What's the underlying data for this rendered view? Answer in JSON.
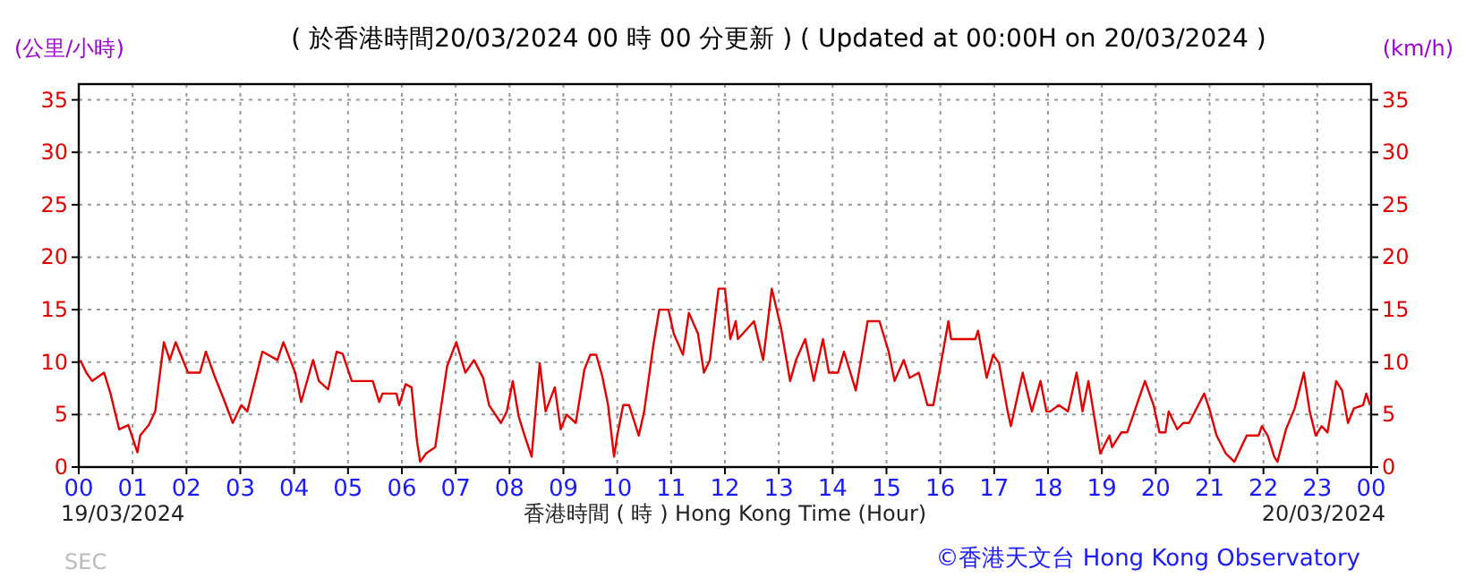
{
  "chart_data": {
    "type": "line",
    "title": "( 於香港時間20/03/2024 00 時 00 分更新 ) ( Updated at 00:00H on 20/03/2024 )",
    "xlabel": "香港時間 ( 時 )  Hong Kong Time (Hour)",
    "ylabel": "(公里/小時)",
    "y2label": "(km/h)",
    "annotations": [
      "19/03/2024",
      "20/03/2024",
      "SEC",
      "©香港天文台 Hong Kong Observatory"
    ],
    "xlim": [
      0,
      24
    ],
    "xticks": [
      {
        "value": 0,
        "label": "00"
      },
      {
        "value": 1,
        "label": "01"
      },
      {
        "value": 2,
        "label": "02"
      },
      {
        "value": 3,
        "label": "03"
      },
      {
        "value": 4,
        "label": "04"
      },
      {
        "value": 5,
        "label": "05"
      },
      {
        "value": 6,
        "label": "06"
      },
      {
        "value": 7,
        "label": "07"
      },
      {
        "value": 8,
        "label": "08"
      },
      {
        "value": 9,
        "label": "09"
      },
      {
        "value": 10,
        "label": "10"
      },
      {
        "value": 11,
        "label": "11"
      },
      {
        "value": 12,
        "label": "12"
      },
      {
        "value": 13,
        "label": "13"
      },
      {
        "value": 14,
        "label": "14"
      },
      {
        "value": 15,
        "label": "15"
      },
      {
        "value": 16,
        "label": "16"
      },
      {
        "value": 17,
        "label": "17"
      },
      {
        "value": 18,
        "label": "18"
      },
      {
        "value": 19,
        "label": "19"
      },
      {
        "value": 20,
        "label": "20"
      },
      {
        "value": 21,
        "label": "21"
      },
      {
        "value": 22,
        "label": "22"
      },
      {
        "value": 23,
        "label": "23"
      },
      {
        "value": 24,
        "label": "00"
      }
    ],
    "ylim": [
      0,
      36.5
    ],
    "yticks": [
      0,
      5,
      10,
      15,
      20,
      25,
      30,
      35
    ],
    "y2lim": [
      0,
      36.5
    ],
    "y2ticks": [
      0,
      5,
      10,
      15,
      20,
      25,
      30,
      35
    ],
    "grid": true,
    "marker": "none",
    "line_style": "solid",
    "series": [
      {
        "color": "#e00000",
        "x": [
          0.03,
          0.14,
          0.25,
          0.47,
          0.59,
          0.75,
          0.92,
          1.09,
          1.14,
          1.3,
          1.42,
          1.58,
          1.69,
          1.8,
          2.03,
          2.25,
          2.36,
          2.52,
          2.69,
          2.86,
          3.02,
          3.13,
          3.41,
          3.69,
          3.8,
          4.02,
          4.13,
          4.35,
          4.46,
          4.63,
          4.79,
          4.9,
          5.07,
          5.46,
          5.58,
          5.64,
          5.9,
          5.95,
          6.07,
          6.18,
          6.28,
          6.34,
          6.45,
          6.62,
          6.84,
          7.01,
          7.18,
          7.34,
          7.51,
          7.62,
          7.84,
          7.95,
          8.06,
          8.17,
          8.28,
          8.41,
          8.56,
          8.67,
          8.84,
          8.95,
          9.06,
          9.23,
          9.39,
          9.5,
          9.61,
          9.72,
          9.83,
          9.94,
          10.0,
          10.11,
          10.22,
          10.4,
          10.5,
          10.67,
          10.78,
          10.95,
          11.05,
          11.22,
          11.33,
          11.5,
          11.61,
          11.72,
          11.88,
          12.0,
          12.1,
          12.2,
          12.24,
          12.54,
          12.71,
          12.87,
          13.04,
          13.21,
          13.32,
          13.49,
          13.65,
          13.82,
          13.93,
          14.1,
          14.21,
          14.43,
          14.65,
          14.87,
          15.04,
          15.15,
          15.32,
          15.43,
          15.6,
          15.76,
          15.87,
          16.04,
          16.15,
          16.2,
          16.65,
          16.7,
          16.86,
          16.98,
          17.09,
          17.25,
          17.31,
          17.53,
          17.7,
          17.86,
          17.97,
          18.04,
          18.2,
          18.37,
          18.53,
          18.64,
          18.75,
          18.97,
          19.14,
          19.19,
          19.36,
          19.47,
          19.8,
          19.96,
          20.07,
          20.18,
          20.24,
          20.4,
          20.51,
          20.62,
          20.79,
          20.9,
          21.01,
          21.13,
          21.3,
          21.46,
          21.69,
          21.91,
          21.97,
          22.08,
          22.2,
          22.26,
          22.42,
          22.58,
          22.75,
          22.86,
          22.97,
          23.08,
          23.19,
          23.35,
          23.46,
          23.57,
          23.68,
          23.85,
          23.91,
          23.98
        ],
        "values": [
          10.2,
          9,
          8.2,
          9,
          7,
          3.6,
          4,
          1.4,
          3,
          4,
          5.3,
          11.9,
          10.2,
          11.9,
          9,
          9,
          11,
          8.7,
          6.5,
          4.2,
          5.9,
          5.3,
          11,
          10.2,
          11.9,
          9,
          6.2,
          10.2,
          8.2,
          7.4,
          11,
          10.8,
          8.2,
          8.2,
          6.2,
          7,
          7,
          5.9,
          7.9,
          7.6,
          2.5,
          0.5,
          1.3,
          1.9,
          9.6,
          11.9,
          9,
          10.2,
          8.5,
          5.9,
          4.2,
          5.3,
          8.2,
          4.8,
          3,
          1,
          9.9,
          5.3,
          7.6,
          3.6,
          5,
          4.2,
          9.3,
          10.7,
          10.7,
          8.7,
          5.9,
          1,
          3,
          5.9,
          5.9,
          3,
          5.3,
          11.6,
          15,
          15,
          12.7,
          10.7,
          14.7,
          12.7,
          9,
          10.2,
          17,
          17,
          12.2,
          13.9,
          12.2,
          13.9,
          10.2,
          17,
          13.3,
          8.2,
          10.2,
          12.2,
          8.2,
          12.2,
          9,
          9,
          11,
          7.3,
          13.9,
          13.9,
          11,
          8.2,
          10.2,
          8.5,
          9,
          5.9,
          5.9,
          10.7,
          13.9,
          12.2,
          12.2,
          13,
          8.5,
          10.7,
          9.9,
          5.3,
          3.9,
          9,
          5.3,
          8.2,
          5.3,
          5.3,
          5.9,
          5.3,
          9,
          5.3,
          8.2,
          1.3,
          3,
          1.9,
          3.3,
          3.3,
          8.2,
          5.9,
          3.3,
          3.3,
          5.3,
          3.6,
          4.2,
          4.2,
          5.9,
          7,
          5.3,
          3,
          1.3,
          0.5,
          3,
          3,
          3.9,
          3,
          1,
          0.5,
          3.6,
          5.6,
          9,
          5.3,
          3,
          3.9,
          3.3,
          8.2,
          7.3,
          4.2,
          5.6,
          5.9,
          7,
          5.9
        ]
      }
    ]
  }
}
